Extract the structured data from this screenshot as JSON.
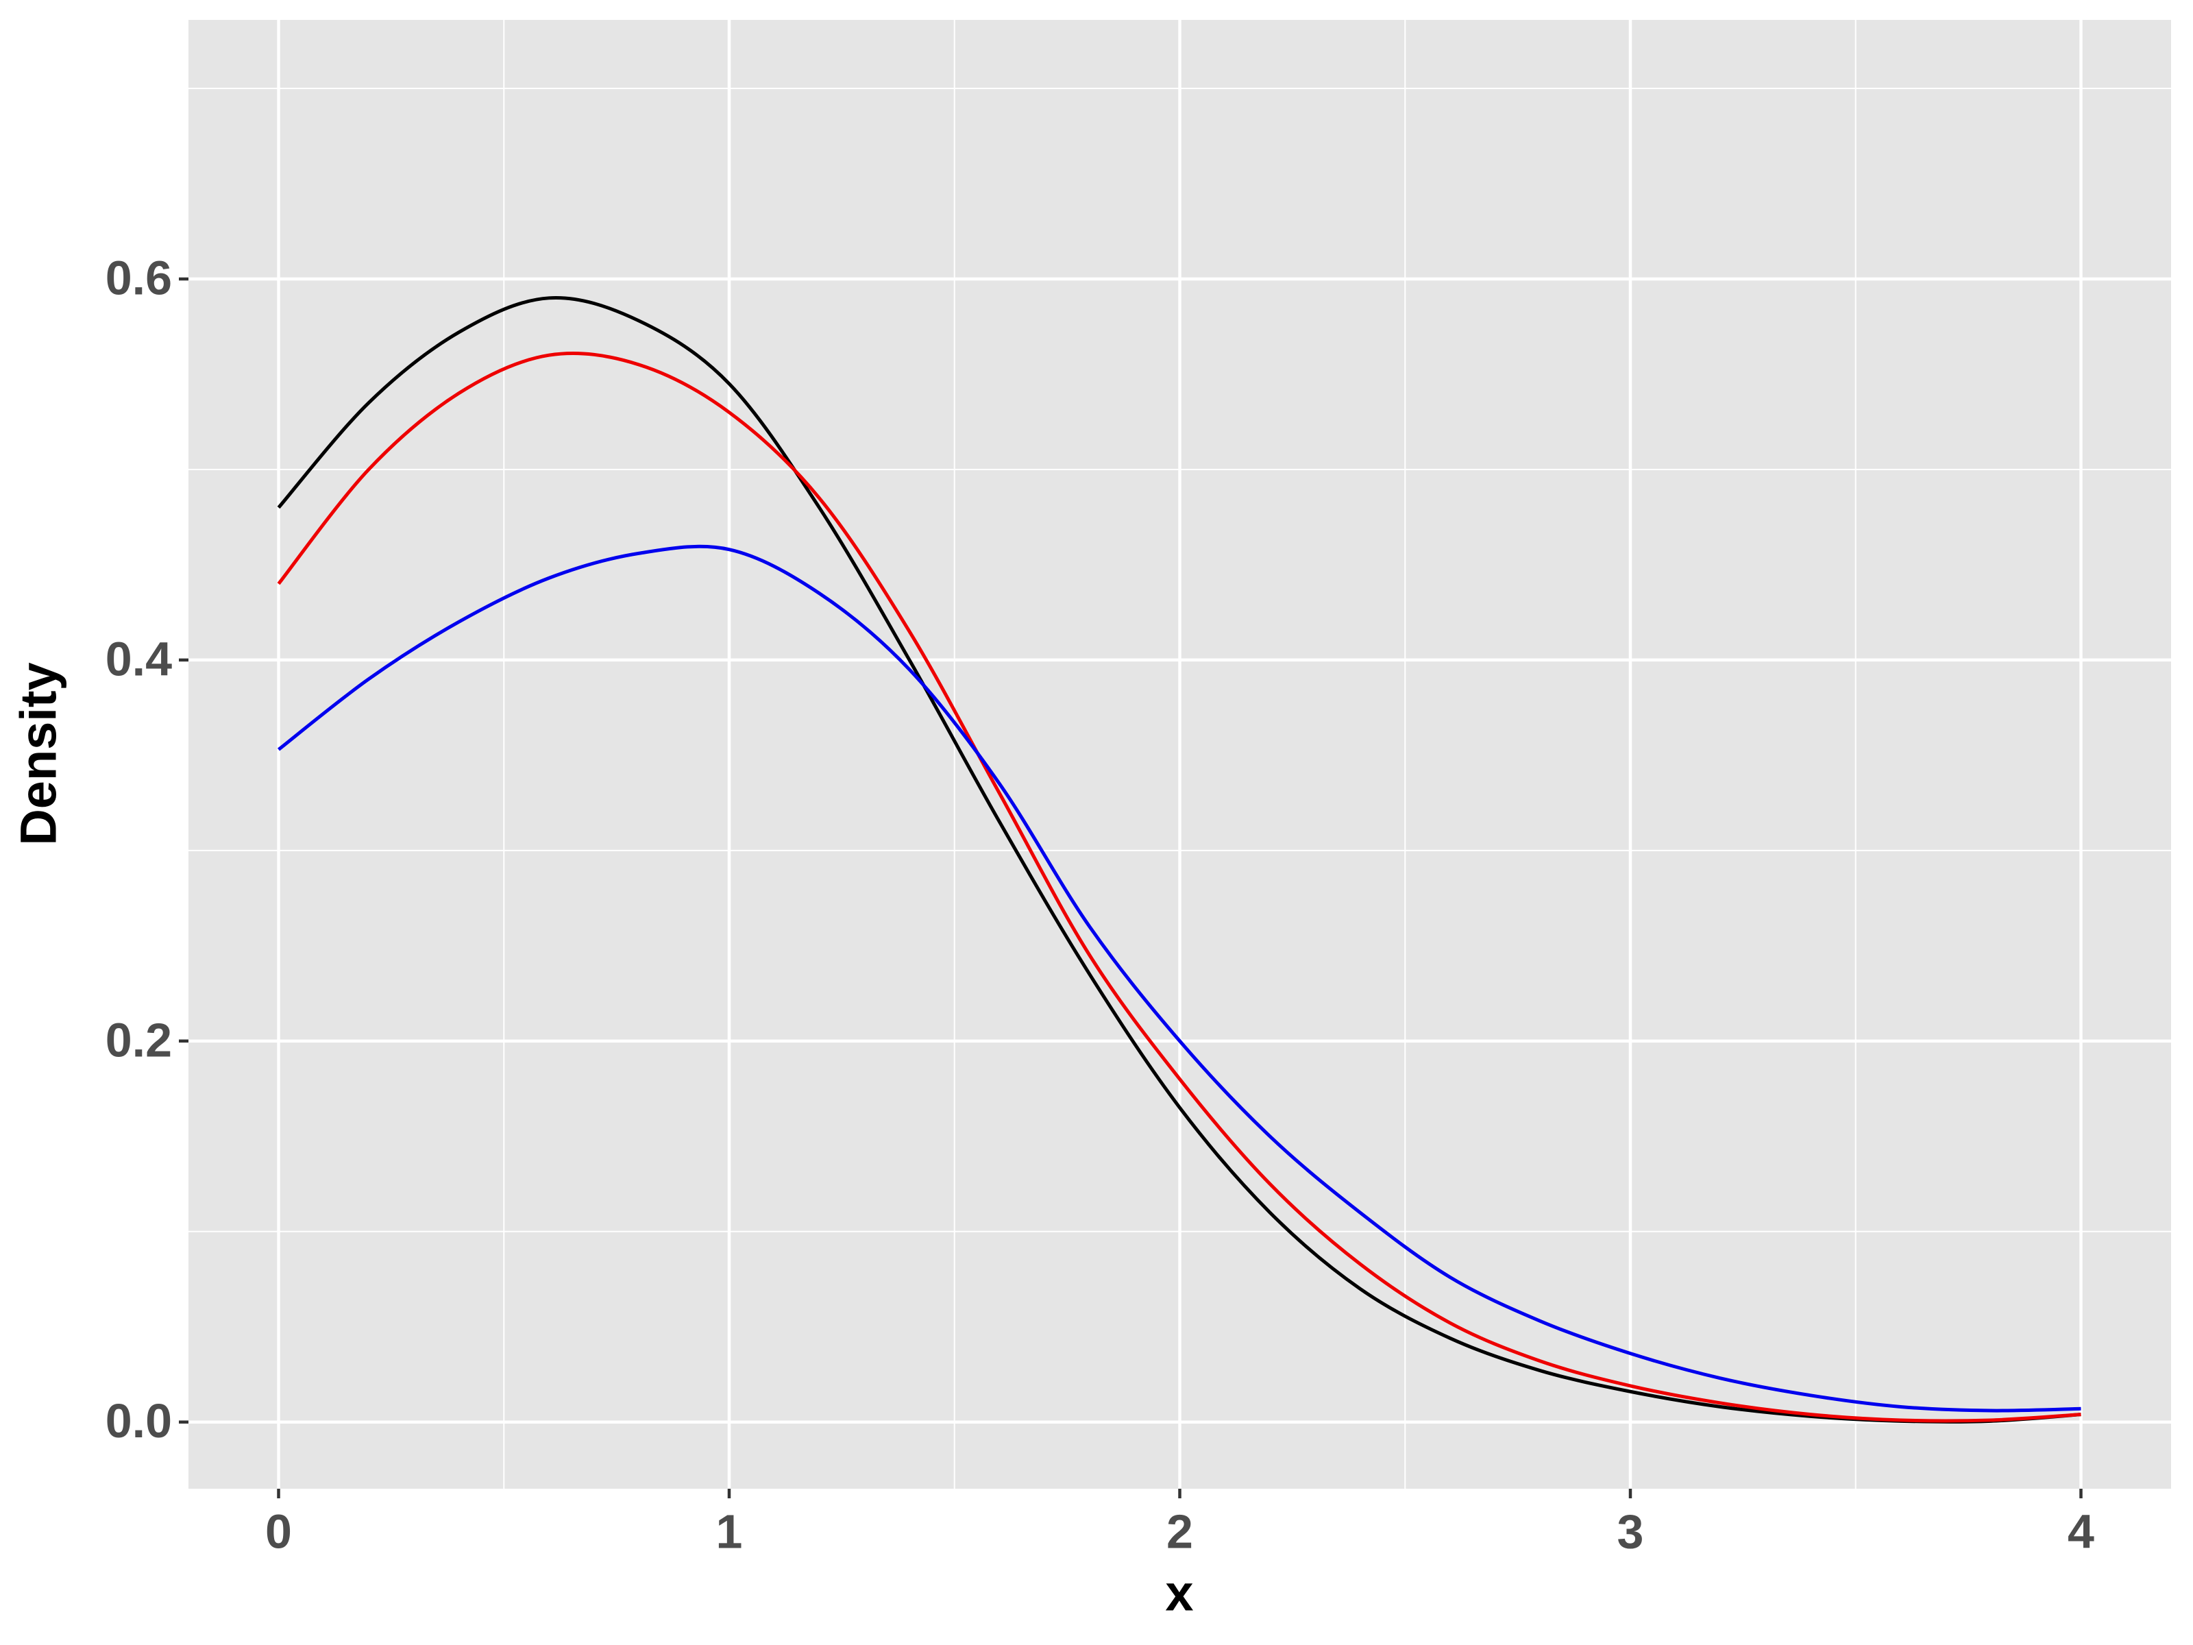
{
  "chart_data": {
    "type": "line",
    "x_label": "x",
    "y_label": "Density",
    "x": [
      0,
      0.2,
      0.4,
      0.6,
      0.8,
      1.0,
      1.2,
      1.4,
      1.6,
      1.8,
      2.0,
      2.2,
      2.4,
      2.6,
      2.8,
      3.0,
      3.2,
      3.4,
      3.6,
      3.8,
      4.0
    ],
    "series": [
      {
        "color": "#000000",
        "values": [
          0.48,
          0.535,
          0.572,
          0.59,
          0.578,
          0.545,
          0.48,
          0.4,
          0.315,
          0.235,
          0.165,
          0.11,
          0.07,
          0.044,
          0.027,
          0.016,
          0.008,
          0.003,
          0.0005,
          0.0005,
          0.004
        ]
      },
      {
        "color": "#ee0000",
        "values": [
          0.44,
          0.5,
          0.54,
          0.56,
          0.555,
          0.53,
          0.485,
          0.415,
          0.33,
          0.245,
          0.18,
          0.125,
          0.083,
          0.052,
          0.032,
          0.019,
          0.01,
          0.004,
          0.001,
          0.001,
          0.004
        ]
      },
      {
        "color": "#0000ee",
        "values": [
          0.353,
          0.39,
          0.42,
          0.443,
          0.456,
          0.458,
          0.435,
          0.395,
          0.335,
          0.26,
          0.2,
          0.15,
          0.11,
          0.076,
          0.053,
          0.036,
          0.023,
          0.014,
          0.008,
          0.006,
          0.007
        ]
      }
    ],
    "xlim": [
      -0.2,
      4.2
    ],
    "ylim": [
      -0.035,
      0.736
    ],
    "xticks": [
      0,
      1,
      2,
      3,
      4
    ],
    "yticks": [
      {
        "value": 0,
        "label": "0.0"
      },
      0.2,
      0.4,
      0.6
    ],
    "x_minor_breaks": [
      0.5,
      1.5,
      2.5,
      3.5
    ],
    "y_minor_breaks": [
      0.1,
      0.3,
      0.5,
      0.7
    ],
    "grid": true
  }
}
